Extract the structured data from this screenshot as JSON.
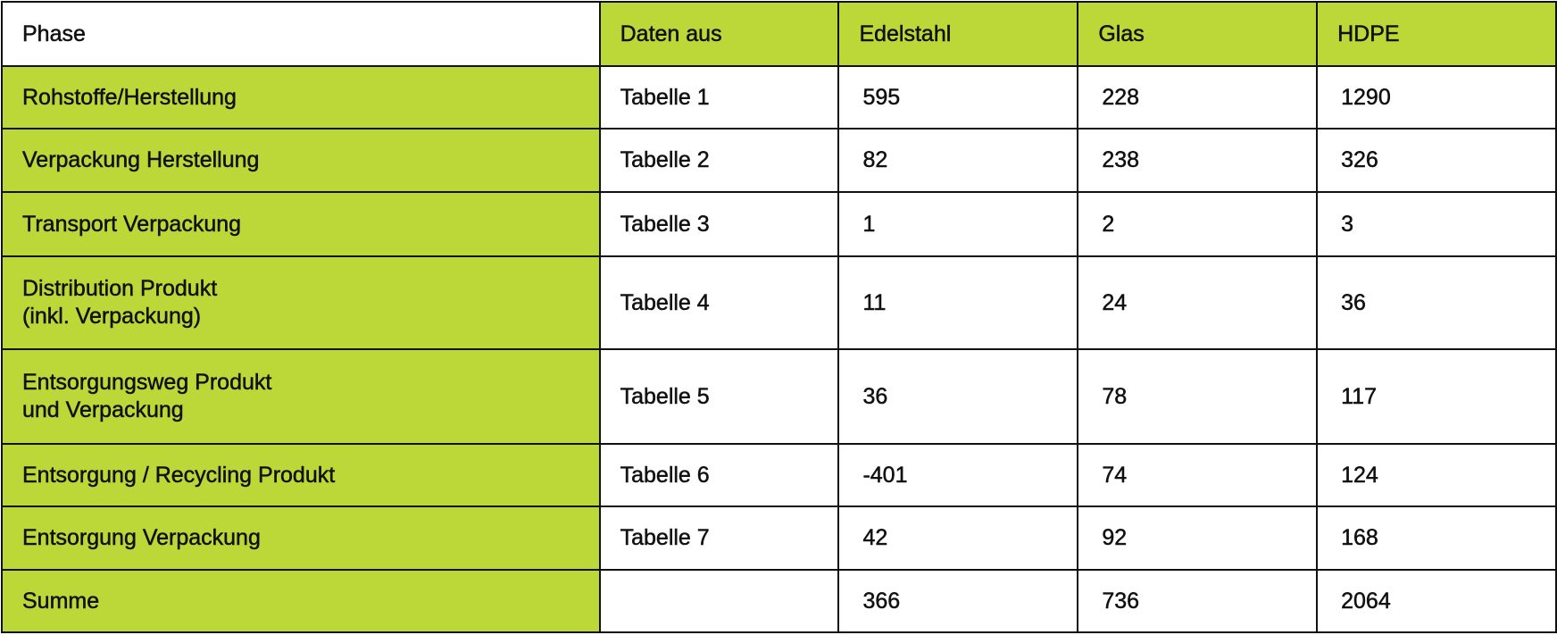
{
  "header": {
    "phase": "Phase",
    "source": "Daten aus",
    "cols": [
      "Edelstahl",
      "Glas",
      "HDPE"
    ]
  },
  "rows": [
    {
      "phase": [
        "Rohstoffe/Herstellung"
      ],
      "source": "Tabelle 1",
      "values": [
        "595",
        "228",
        "1290"
      ]
    },
    {
      "phase": [
        "Verpackung Herstellung"
      ],
      "source": "Tabelle 2",
      "values": [
        "82",
        "238",
        "326"
      ]
    },
    {
      "phase": [
        "Transport Verpackung"
      ],
      "source": "Tabelle 3",
      "values": [
        "1",
        "2",
        "3"
      ]
    },
    {
      "phase": [
        "Distribution Produkt",
        "(inkl. Verpackung)"
      ],
      "source": "Tabelle 4",
      "values": [
        "11",
        "24",
        "36"
      ]
    },
    {
      "phase": [
        "Entsorgungsweg Produkt",
        "und Verpackung"
      ],
      "source": "Tabelle 5",
      "values": [
        "36",
        "78",
        "117"
      ]
    },
    {
      "phase": [
        "Entsorgung / Recycling Produkt"
      ],
      "source": "Tabelle 6",
      "values": [
        "-401",
        "74",
        "124"
      ]
    },
    {
      "phase": [
        "Entsorgung Verpackung"
      ],
      "source": "Tabelle 7",
      "values": [
        "42",
        "92",
        "168"
      ]
    }
  ],
  "total": {
    "phase": "Summe",
    "source": "",
    "values": [
      "366",
      "736",
      "2064"
    ]
  },
  "colors": {
    "accent": "#bcd838",
    "border": "#111111"
  }
}
